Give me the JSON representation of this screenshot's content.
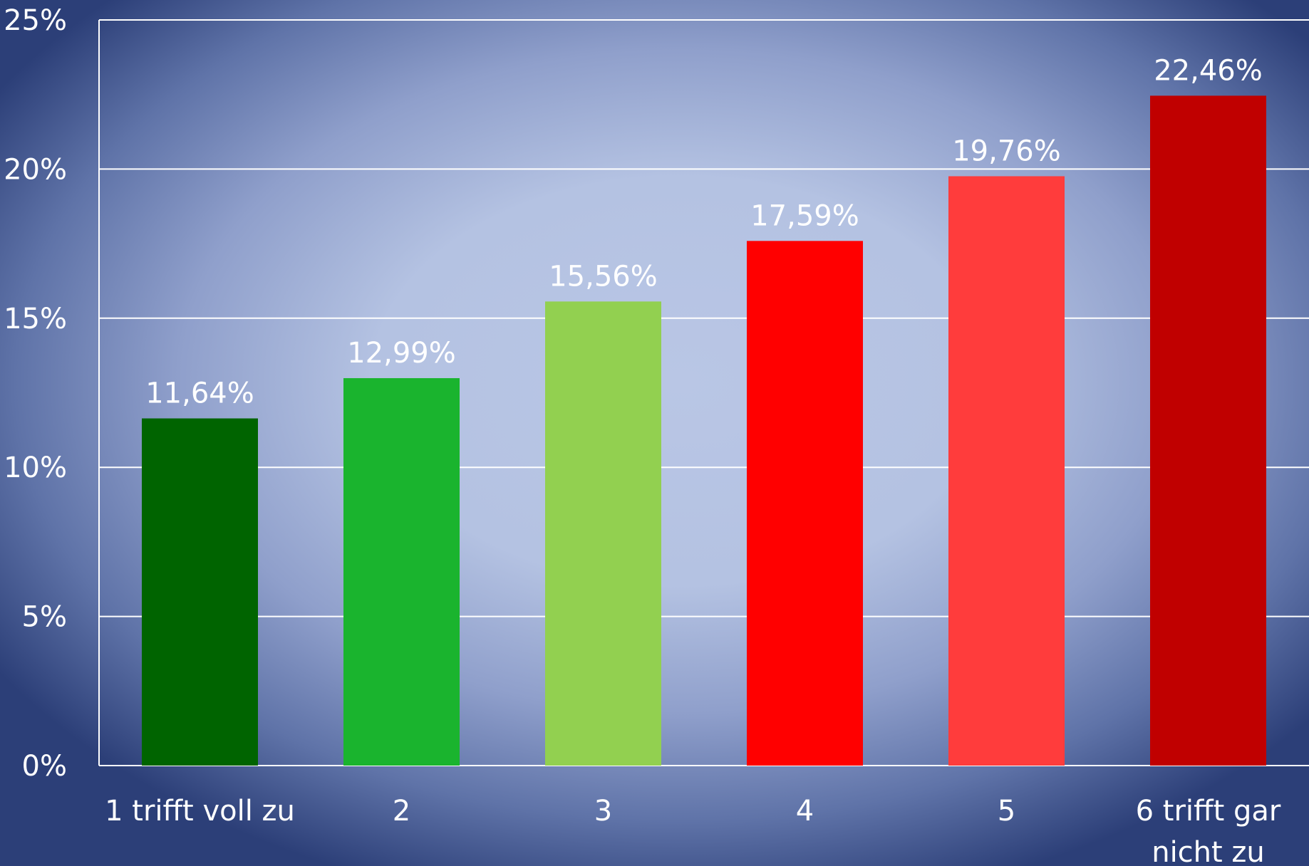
{
  "chart_data": {
    "type": "bar",
    "title": "",
    "xlabel": "",
    "ylabel": "",
    "categories": [
      [
        "1 trifft voll zu"
      ],
      [
        "2"
      ],
      [
        "3"
      ],
      [
        "4"
      ],
      [
        "5"
      ],
      [
        "6 trifft gar",
        "nicht zu"
      ]
    ],
    "values": [
      11.64,
      12.99,
      15.56,
      17.59,
      19.76,
      22.46
    ],
    "data_labels": [
      "11,64%",
      "12,99%",
      "15,56%",
      "17,59%",
      "19,76%",
      "22,46%"
    ],
    "bar_colors": [
      "#006400",
      "#1ab42e",
      "#92d050",
      "#ff0000",
      "#ff3c3c",
      "#c00000"
    ],
    "ylim": [
      0,
      25
    ],
    "yticks": [
      0,
      5,
      10,
      15,
      20,
      25
    ],
    "ytick_labels": [
      "0%",
      "5%",
      "10%",
      "15%",
      "20%",
      "25%"
    ],
    "grid": true,
    "legend": "none"
  }
}
